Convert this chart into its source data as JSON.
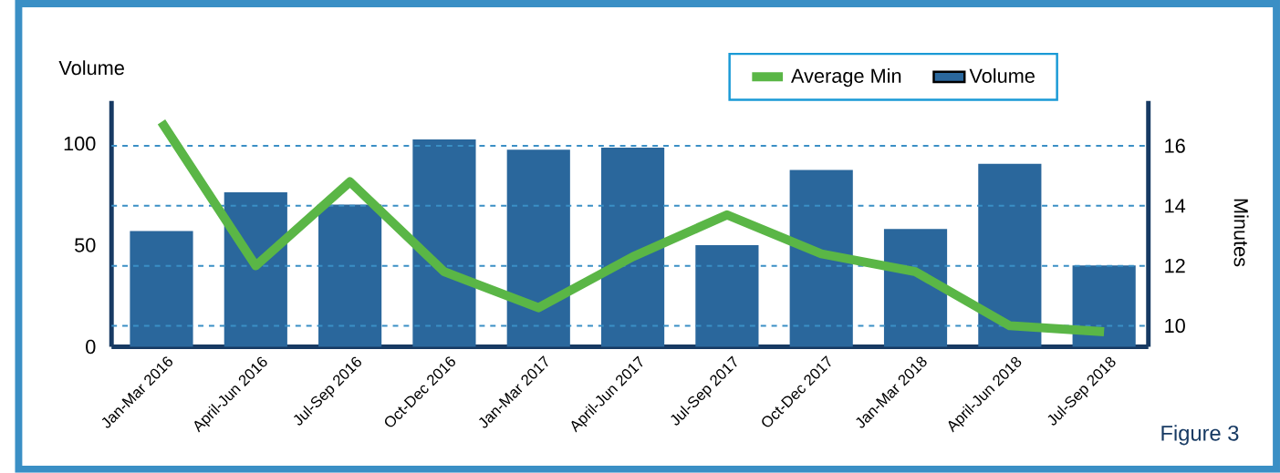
{
  "chart_data": {
    "type": "bar",
    "ylabel": "Volume",
    "y2label": "Minutes",
    "categories": [
      "Jan-Mar 2016",
      "April-Jun 2016",
      "Jul-Sep 2016",
      "Oct-Dec 2016",
      "Jan-Mar 2017",
      "April-Jun 2017",
      "Jul-Sep 2017",
      "Oct-Dec 2017",
      "Jan-Mar 2018",
      "April-Jun 2018",
      "Jul-Sep 2018"
    ],
    "series": [
      {
        "name": "Volume",
        "color": "#2a679c",
        "values": [
          57,
          76,
          70,
          102,
          97,
          98,
          50,
          87,
          58,
          90,
          40
        ]
      },
      {
        "name": "Average Min",
        "type": "line",
        "axis": "y2",
        "color": "#5ab646",
        "values": [
          16.8,
          12.0,
          14.8,
          11.8,
          10.6,
          12.3,
          13.7,
          12.4,
          11.8,
          10.0,
          9.8
        ]
      }
    ],
    "ylim": [
      0,
      121
    ],
    "yticks": [
      0,
      50,
      100
    ],
    "y2lim": [
      9.3,
      17.5
    ],
    "y2ticks": [
      10,
      12,
      14,
      16
    ],
    "grid": "y",
    "legend": "top right",
    "line_style": "solid",
    "annotations": [
      "Figure 3"
    ]
  }
}
